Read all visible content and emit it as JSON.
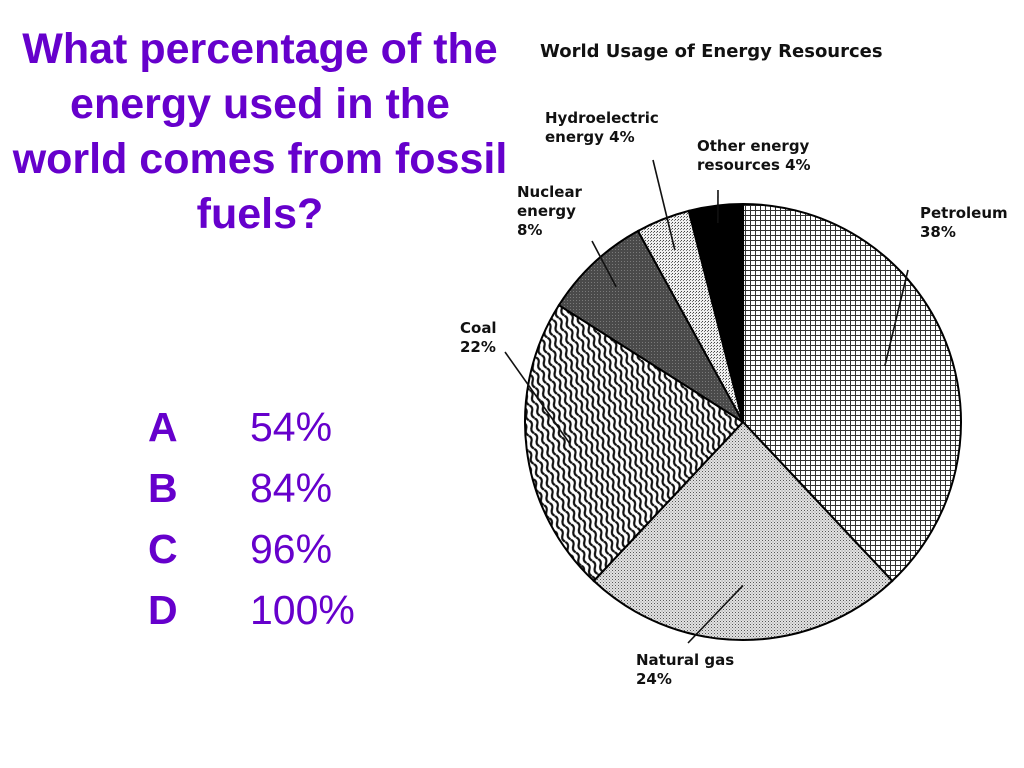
{
  "question": {
    "text": "What percentage of the energy used in the world comes from fossil fuels?"
  },
  "choices": [
    {
      "letter": "A",
      "value": "54%"
    },
    {
      "letter": "B",
      "value": "84%"
    },
    {
      "letter": "C",
      "value": "96%"
    },
    {
      "letter": "D",
      "value": "100%"
    }
  ],
  "colors": {
    "question_text": "#6600cc",
    "outline": "#000000"
  },
  "chart_data": {
    "type": "pie",
    "title": "World Usage of Energy Resources",
    "slices": [
      {
        "name": "Petroleum",
        "value": 38,
        "label_lines": [
          "Petroleum",
          "38%"
        ],
        "pattern": "grid"
      },
      {
        "name": "Natural gas",
        "value": 24,
        "label_lines": [
          "Natural gas",
          "24%"
        ],
        "pattern": "dots"
      },
      {
        "name": "Coal",
        "value": 22,
        "label_lines": [
          "Coal",
          "22%"
        ],
        "pattern": "waves"
      },
      {
        "name": "Nuclear energy",
        "value": 8,
        "label_lines": [
          "Nuclear",
          "energy",
          "8%"
        ],
        "pattern": "dark"
      },
      {
        "name": "Hydroelectric energy",
        "value": 4,
        "label_lines": [
          "Hydroelectric",
          "energy 4%"
        ],
        "pattern": "light"
      },
      {
        "name": "Other energy resources",
        "value": 4,
        "label_lines": [
          "Other energy",
          "resources 4%"
        ],
        "pattern": "black"
      }
    ],
    "start": "12 o'clock",
    "direction": "clockwise"
  }
}
